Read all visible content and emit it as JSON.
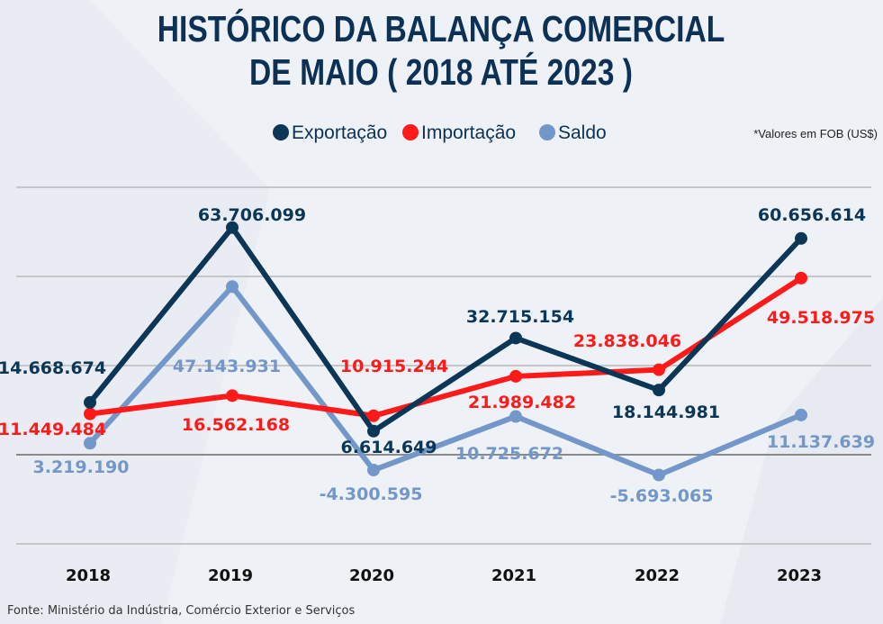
{
  "chart_data": {
    "type": "line",
    "title": "HISTÓRICO DA BALANÇA COMERCIAL DE MAIO ( 2018 ATÉ 2023 )",
    "title_lines": [
      "HISTÓRICO DA BALANÇA COMERCIAL",
      "DE MAIO ( 2018 ATÉ 2023 )"
    ],
    "note": "*Valores em FOB (US$)",
    "source": "Fonte: Ministério da Indústria, Comércio Exterior e Serviços",
    "categories": [
      "2018",
      "2019",
      "2020",
      "2021",
      "2022",
      "2023"
    ],
    "ylim": [
      -25000000,
      75000000
    ],
    "grid": true,
    "legend_position": "top",
    "series": [
      {
        "name": "Exportação",
        "color": "#0c3656",
        "values": [
          14668674,
          63706099,
          6614649,
          32715154,
          18144981,
          60656614
        ],
        "labels": [
          "14.668.674",
          "63.706.099",
          "6.614.649",
          "32.715.154",
          "18.144.981",
          "60.656.614"
        ]
      },
      {
        "name": "Importação",
        "color": "#ff1a1a",
        "values": [
          11449484,
          16562168,
          10915244,
          21989482,
          23838046,
          49518975
        ],
        "labels": [
          "11.449.484",
          "16.562.168",
          "10.915.244",
          "21.989.482",
          "23.838.046",
          "49.518.975"
        ]
      },
      {
        "name": "Saldo",
        "color": "#7397c8",
        "values": [
          3219190,
          47143931,
          -4300595,
          10725672,
          -5693065,
          11137639
        ],
        "labels": [
          "3.219.190",
          "47.143.931",
          "-4.300.595",
          "10.725.672",
          "-5.693.065",
          "11.137.639"
        ]
      }
    ]
  }
}
